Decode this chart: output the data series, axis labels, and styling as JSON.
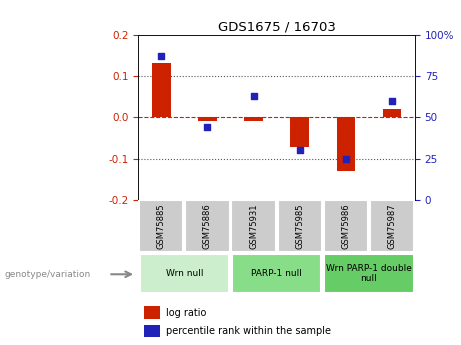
{
  "title": "GDS1675 / 16703",
  "samples": [
    "GSM75885",
    "GSM75886",
    "GSM75931",
    "GSM75985",
    "GSM75986",
    "GSM75987"
  ],
  "log_ratios": [
    0.13,
    -0.008,
    -0.008,
    -0.072,
    -0.13,
    0.02
  ],
  "percentiles": [
    87,
    44,
    63,
    30,
    25,
    60
  ],
  "bar_color": "#cc2200",
  "dot_color": "#2222bb",
  "zero_line_color": "#cc2200",
  "dotted_line_color": "#555555",
  "groups": [
    {
      "label": "Wrn null",
      "start": 0,
      "end": 2,
      "color": "#cceecc"
    },
    {
      "label": "PARP-1 null",
      "start": 2,
      "end": 4,
      "color": "#88dd88"
    },
    {
      "label": "Wrn PARP-1 double\nnull",
      "start": 4,
      "end": 6,
      "color": "#66cc66"
    }
  ],
  "ylim_left": [
    -0.2,
    0.2
  ],
  "ylim_right": [
    0,
    100
  ],
  "yticks_left": [
    -0.2,
    -0.1,
    0.0,
    0.1,
    0.2
  ],
  "yticks_right": [
    0,
    25,
    50,
    75,
    100
  ],
  "ytick_labels_right": [
    "0",
    "25",
    "50",
    "75",
    "100%"
  ],
  "legend_log_ratio": "log ratio",
  "legend_percentile": "percentile rank within the sample",
  "genotype_label": "genotype/variation"
}
